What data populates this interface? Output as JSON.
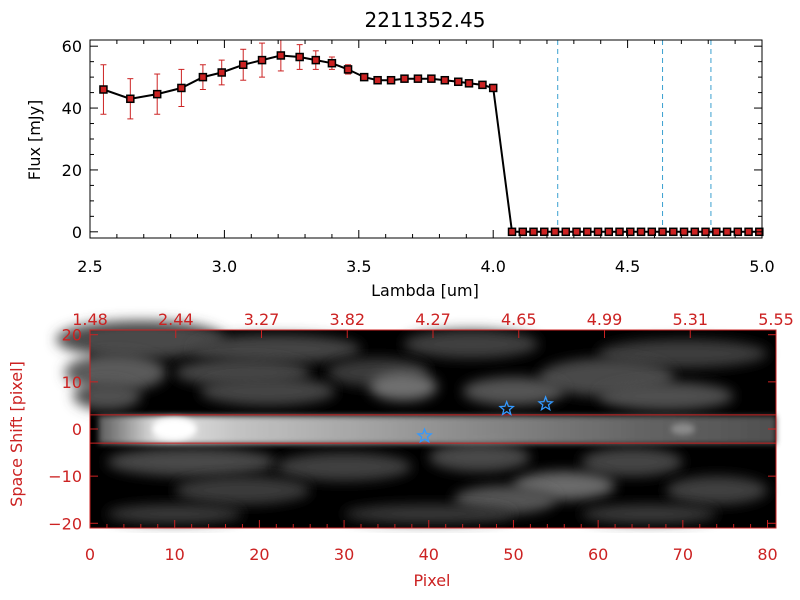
{
  "colors": {
    "axis_top": "#000000",
    "axis_bottom": "#cc2222",
    "marker": "#cc2222",
    "error_bar": "#cc2222",
    "flux_line": "#000000",
    "vline": "#3aa0d0",
    "star": "#3399ff",
    "band_line": "#cc2222",
    "background": "#ffffff"
  },
  "chart_data": [
    {
      "type": "line",
      "title": "2211352.45",
      "xlabel": "Lambda [um]",
      "ylabel": "Flux [mJy]",
      "xlim": [
        2.5,
        5.0
      ],
      "ylim": [
        -2,
        62
      ],
      "x_ticks": [
        2.5,
        3.0,
        3.5,
        4.0,
        4.5,
        5.0
      ],
      "x_tick_labels": [
        "2.5",
        "3.0",
        "3.5",
        "4.0",
        "4.5",
        "5.0"
      ],
      "y_ticks": [
        0,
        20,
        40,
        60
      ],
      "y_tick_labels": [
        "0",
        "20",
        "40",
        "60"
      ],
      "series": [
        {
          "x": [
            2.55,
            2.65,
            2.75,
            2.84,
            2.92,
            2.99,
            3.07,
            3.14,
            3.21,
            3.28,
            3.34,
            3.4,
            3.46,
            3.52,
            3.57,
            3.62,
            3.67,
            3.72,
            3.77,
            3.82,
            3.87,
            3.91,
            3.96,
            4.0,
            4.07,
            4.11,
            4.15,
            4.19,
            4.23,
            4.27,
            4.31,
            4.35,
            4.39,
            4.43,
            4.47,
            4.51,
            4.55,
            4.59,
            4.63,
            4.67,
            4.71,
            4.75,
            4.79,
            4.83,
            4.87,
            4.91,
            4.95,
            4.99
          ],
          "y": [
            46,
            43,
            44.5,
            46.5,
            50,
            51.5,
            54,
            55.5,
            57,
            56.5,
            55.5,
            54.5,
            52.5,
            50,
            49,
            49,
            49.5,
            49.5,
            49.5,
            49,
            48.5,
            48,
            47.5,
            46.5,
            0,
            0,
            0,
            0,
            0,
            0,
            0,
            0,
            0,
            0,
            0,
            0,
            0,
            0,
            0,
            0,
            0,
            0,
            0,
            0,
            0,
            0,
            0,
            0
          ],
          "yerr": [
            8,
            6.5,
            6.5,
            6,
            4,
            4,
            5,
            5.5,
            5,
            4,
            3,
            2,
            1.5,
            1,
            1,
            1,
            1,
            1,
            1,
            1,
            1,
            1,
            1,
            1,
            0,
            0,
            0,
            0,
            0,
            0,
            0,
            0,
            0,
            0,
            0,
            0,
            0,
            0,
            0,
            0,
            0,
            0,
            0,
            0,
            0,
            0,
            0,
            0
          ]
        }
      ],
      "vlines": [
        4.24,
        4.63,
        4.81
      ],
      "grid": false
    },
    {
      "type": "heatmap",
      "xlabel": "Pixel",
      "ylabel": "Space Shift [pixel]",
      "xlim": [
        0,
        81
      ],
      "ylim": [
        -21,
        21
      ],
      "x_ticks": [
        0,
        10,
        20,
        30,
        40,
        50,
        60,
        70,
        80
      ],
      "x_tick_labels": [
        "0",
        "10",
        "20",
        "30",
        "40",
        "50",
        "60",
        "70",
        "80"
      ],
      "y_ticks": [
        -20,
        -10,
        0,
        10,
        20
      ],
      "y_tick_labels": [
        "−20",
        "−10",
        "0",
        "10",
        "20"
      ],
      "top_axis_tick_labels": [
        "1.48",
        "2.44",
        "3.27",
        "3.82",
        "4.27",
        "4.65",
        "4.99",
        "5.31",
        "5.55"
      ],
      "band_lines_y": [
        3,
        -3
      ],
      "stars": [
        {
          "x": 39.5,
          "y": -1.5
        },
        {
          "x": 49.2,
          "y": 4.3
        },
        {
          "x": 53.8,
          "y": 5.3
        }
      ],
      "grid": false
    }
  ]
}
